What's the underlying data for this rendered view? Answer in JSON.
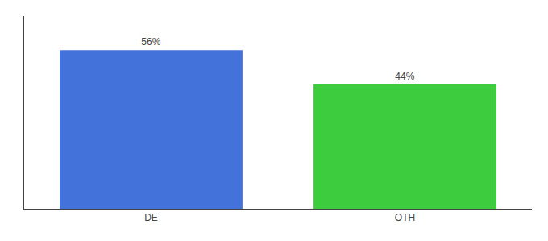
{
  "chart_data": {
    "type": "bar",
    "categories": [
      "DE",
      "OTH"
    ],
    "values": [
      56,
      44
    ],
    "value_labels": [
      "56%",
      "44%"
    ],
    "colors": [
      "#4472db",
      "#3dcc3d"
    ],
    "ylim": [
      0,
      68
    ],
    "data_labels": true,
    "tick_labels": "x",
    "grid": false
  }
}
